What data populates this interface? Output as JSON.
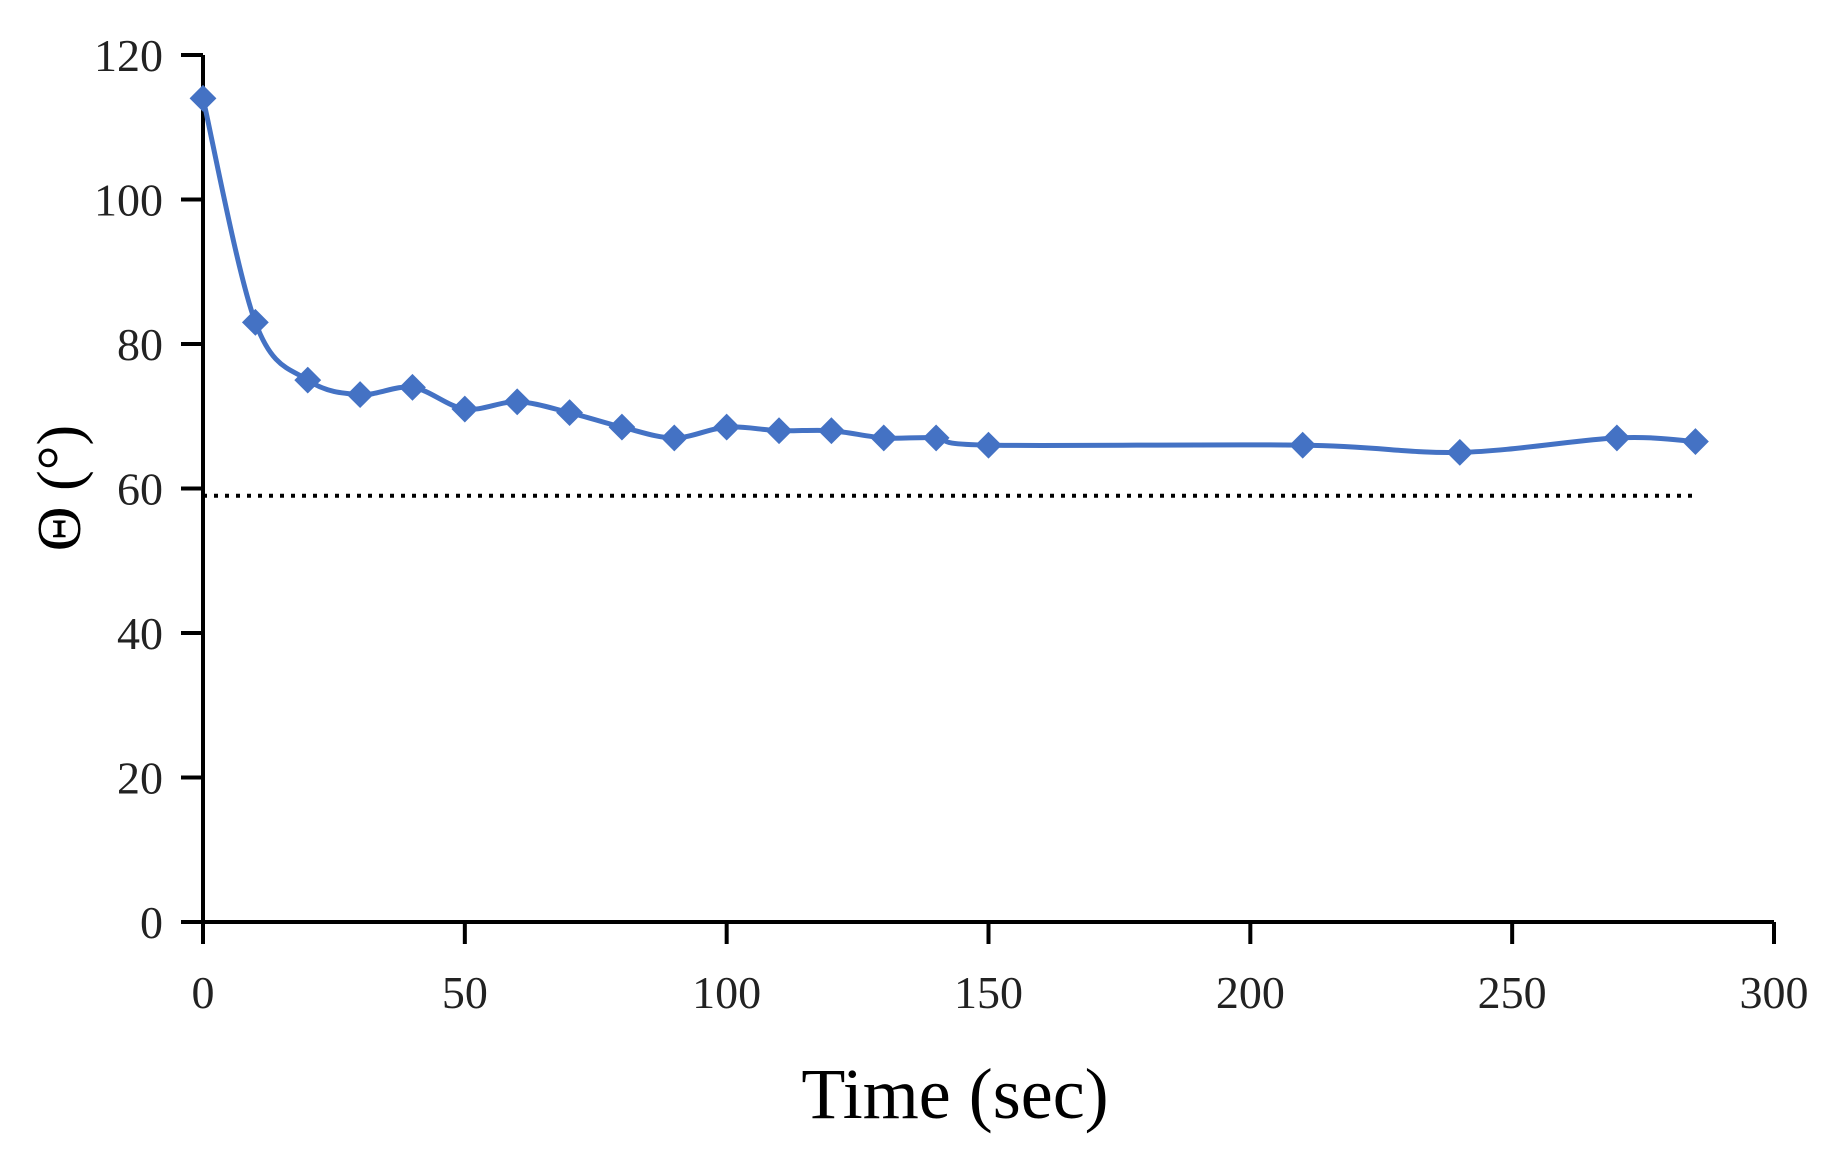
{
  "chart_data": {
    "type": "line",
    "title": "",
    "xlabel": "Time  (sec)",
    "ylabel": "Θ (°)",
    "xlim": [
      0,
      300
    ],
    "ylim": [
      0,
      120
    ],
    "xticks": [
      0,
      50,
      100,
      150,
      200,
      250,
      300
    ],
    "yticks": [
      0,
      20,
      40,
      60,
      80,
      100,
      120
    ],
    "grid": false,
    "series": [
      {
        "marker": "diamond",
        "color": "#4472C4",
        "x": [
          0,
          10,
          20,
          30,
          40,
          50,
          60,
          70,
          80,
          90,
          100,
          110,
          120,
          130,
          140,
          150,
          210,
          240,
          270,
          285
        ],
        "y": [
          114,
          83,
          75,
          73,
          74,
          71,
          72,
          70.5,
          68.5,
          67,
          68.5,
          68,
          68,
          67,
          67,
          66,
          66,
          65,
          67,
          66.5
        ]
      }
    ],
    "reference_lines": [
      {
        "style": "dotted",
        "color": "#000000",
        "y": 59,
        "x_from": 0,
        "x_to": 285
      }
    ]
  }
}
